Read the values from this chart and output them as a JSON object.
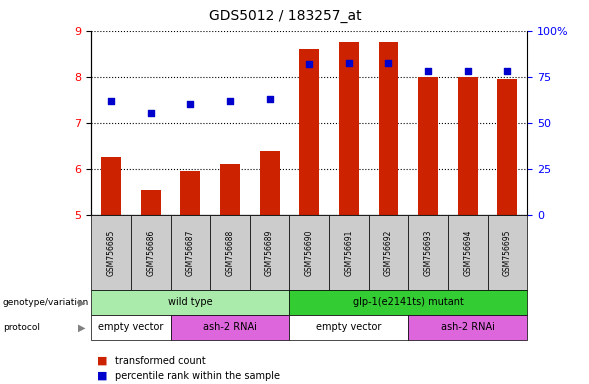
{
  "title": "GDS5012 / 183257_at",
  "samples": [
    "GSM756685",
    "GSM756686",
    "GSM756687",
    "GSM756688",
    "GSM756689",
    "GSM756690",
    "GSM756691",
    "GSM756692",
    "GSM756693",
    "GSM756694",
    "GSM756695"
  ],
  "bar_values": [
    6.25,
    5.55,
    5.95,
    6.1,
    6.38,
    8.6,
    8.75,
    8.75,
    8.0,
    8.0,
    7.95
  ],
  "dot_values": [
    7.48,
    7.22,
    7.42,
    7.48,
    7.52,
    8.28,
    8.3,
    8.3,
    8.12,
    8.12,
    8.12
  ],
  "bar_color": "#cc2200",
  "dot_color": "#0000cc",
  "ylim": [
    5,
    9
  ],
  "yticks_left": [
    5,
    6,
    7,
    8,
    9
  ],
  "right_tick_vals": [
    0,
    25,
    50,
    75,
    100
  ],
  "right_tick_labels": [
    "0",
    "25",
    "50",
    "75",
    "100%"
  ],
  "genotype_groups": [
    {
      "label": "wild type",
      "start": 0,
      "end": 5,
      "color": "#aaeaaa"
    },
    {
      "label": "glp-1(e2141ts) mutant",
      "start": 5,
      "end": 11,
      "color": "#33cc33"
    }
  ],
  "protocol_groups": [
    {
      "label": "empty vector",
      "start": 0,
      "end": 2,
      "color": "#ffffff"
    },
    {
      "label": "ash-2 RNAi",
      "start": 2,
      "end": 5,
      "color": "#dd66dd"
    },
    {
      "label": "empty vector",
      "start": 5,
      "end": 8,
      "color": "#ffffff"
    },
    {
      "label": "ash-2 RNAi",
      "start": 8,
      "end": 11,
      "color": "#dd66dd"
    }
  ],
  "legend_items": [
    {
      "label": "transformed count",
      "color": "#cc2200"
    },
    {
      "label": "percentile rank within the sample",
      "color": "#0000cc"
    }
  ],
  "genotype_label": "genotype/variation",
  "protocol_label": "protocol",
  "sample_box_color": "#cccccc",
  "background_color": "#ffffff"
}
